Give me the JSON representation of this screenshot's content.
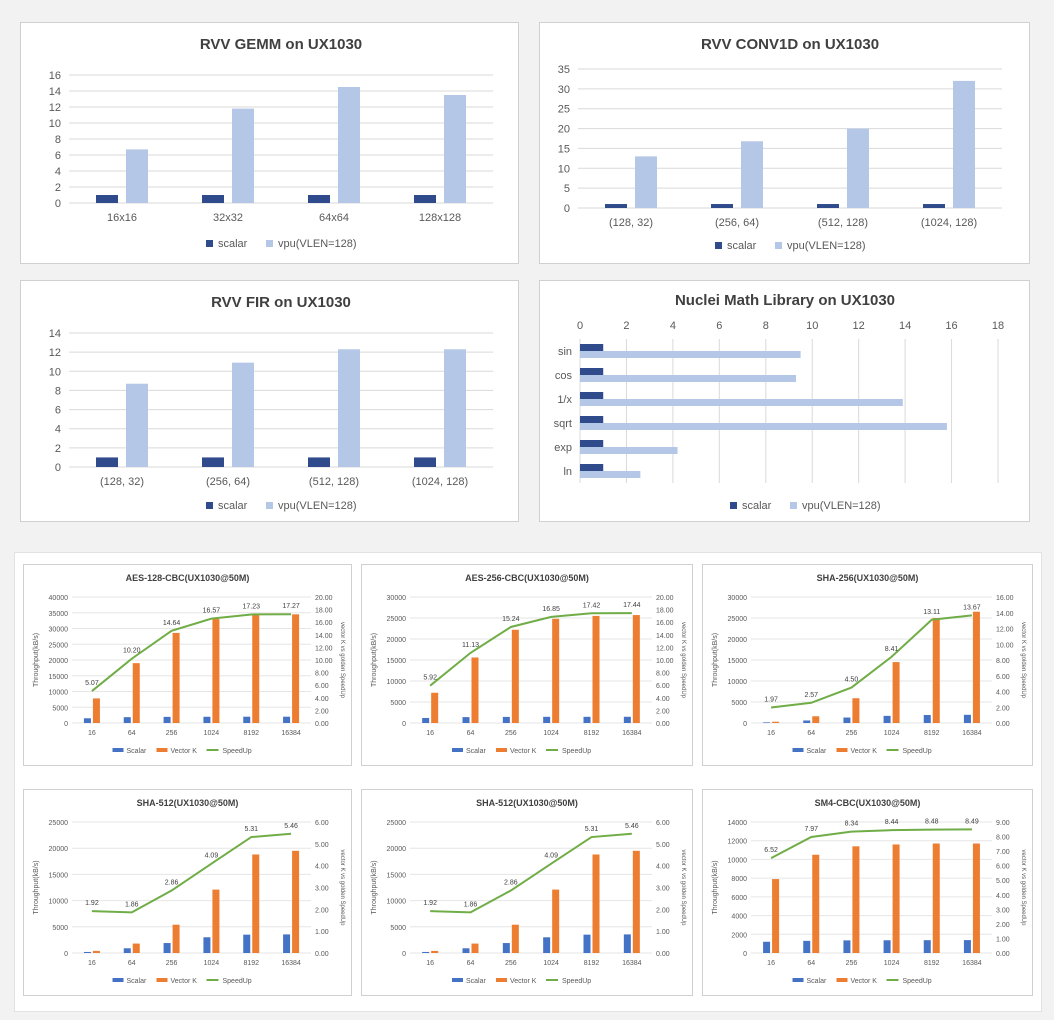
{
  "colors": {
    "scalar_top": "#2f4b8c",
    "vpu_top": "#b4c7e7",
    "scalar_bottom": "#4472c4",
    "vector_bottom": "#ed7d31",
    "speedup_bottom": "#70ad47"
  },
  "chart_data": [
    {
      "type": "bar",
      "title": "RVV GEMM on UX1030",
      "categories": [
        "16x16",
        "32x32",
        "64x64",
        "128x128"
      ],
      "series": [
        {
          "name": "scalar",
          "values": [
            1,
            1,
            1,
            1
          ]
        },
        {
          "name": "vpu(VLEN=128)",
          "values": [
            6.7,
            11.8,
            14.5,
            13.5
          ]
        }
      ],
      "ylim": [
        0,
        16
      ],
      "yticks": [
        0,
        2,
        4,
        6,
        8,
        10,
        12,
        14,
        16
      ],
      "legend": "bottom",
      "grid": true
    },
    {
      "type": "bar",
      "title": "RVV CONV1D on UX1030",
      "categories": [
        "(128, 32)",
        "(256, 64)",
        "(512, 128)",
        "(1024, 128)"
      ],
      "series": [
        {
          "name": "scalar",
          "values": [
            1,
            1,
            1,
            1
          ]
        },
        {
          "name": "vpu(VLEN=128)",
          "values": [
            13,
            16.8,
            20,
            32
          ]
        }
      ],
      "ylim": [
        0,
        35
      ],
      "yticks": [
        0,
        5,
        10,
        15,
        20,
        25,
        30,
        35
      ],
      "legend": "bottom",
      "grid": true
    },
    {
      "type": "bar",
      "title": "RVV FIR on UX1030",
      "categories": [
        "(128, 32)",
        "(256, 64)",
        "(512, 128)",
        "(1024, 128)"
      ],
      "series": [
        {
          "name": "scalar",
          "values": [
            1,
            1,
            1,
            1
          ]
        },
        {
          "name": "vpu(VLEN=128)",
          "values": [
            8.7,
            10.9,
            12.3,
            12.3
          ]
        }
      ],
      "ylim": [
        0,
        14
      ],
      "yticks": [
        0,
        2,
        4,
        6,
        8,
        10,
        12,
        14
      ],
      "legend": "bottom",
      "grid": true
    },
    {
      "type": "bar",
      "orientation": "horizontal",
      "title": "Nuclei Math Library on UX1030",
      "categories": [
        "sin",
        "cos",
        "1/x",
        "sqrt",
        "exp",
        "ln"
      ],
      "series": [
        {
          "name": "scalar",
          "values": [
            1,
            1,
            1,
            1,
            1,
            1
          ]
        },
        {
          "name": "vpu(VLEN=128)",
          "values": [
            9.5,
            9.3,
            13.9,
            15.8,
            4.2,
            2.6
          ]
        }
      ],
      "xlim": [
        0,
        18
      ],
      "xticks": [
        0,
        2,
        4,
        6,
        8,
        10,
        12,
        14,
        16,
        18
      ],
      "legend": "bottom",
      "grid": true
    },
    {
      "type": "bar+line",
      "title": "AES-128-CBC(UX1030@50M)",
      "categories": [
        "16",
        "64",
        "256",
        "1024",
        "8192",
        "16384"
      ],
      "series": [
        {
          "name": "Scalar",
          "values": [
            1500,
            1850,
            1950,
            1980,
            2000,
            2000
          ]
        },
        {
          "name": "Vector K",
          "values": [
            7800,
            19000,
            28600,
            33000,
            34300,
            34500
          ]
        },
        {
          "name": "SpeedUp",
          "axis": "right",
          "values": [
            5.07,
            10.2,
            14.64,
            16.57,
            17.23,
            17.27
          ],
          "labels": [
            "5.07",
            "10.20",
            "14.64",
            "16.57",
            "17.23",
            "17.27"
          ]
        }
      ],
      "ylabel": "Throughput(kB/s)",
      "ylabel_right": "vector K vs golden SpeedUp",
      "ylim": [
        0,
        40000
      ],
      "yticks": [
        "0",
        "5000",
        "10000",
        "15000",
        "20000",
        "25000",
        "30000",
        "35000",
        "40000"
      ],
      "ylim_right": [
        0,
        20
      ],
      "yticks_right": [
        "0.00",
        "2.00",
        "4.00",
        "6.00",
        "8.00",
        "10.00",
        "12.00",
        "14.00",
        "16.00",
        "18.00",
        "20.00"
      ],
      "legend": "bottom"
    },
    {
      "type": "bar+line",
      "title": "AES-256-CBC(UX1030@50M)",
      "categories": [
        "16",
        "64",
        "256",
        "1024",
        "8192",
        "16384"
      ],
      "series": [
        {
          "name": "Scalar",
          "values": [
            1200,
            1400,
            1450,
            1470,
            1470,
            1480
          ]
        },
        {
          "name": "Vector K",
          "values": [
            7200,
            15600,
            22200,
            24800,
            25500,
            25700
          ]
        },
        {
          "name": "SpeedUp",
          "axis": "right",
          "values": [
            5.92,
            11.13,
            15.24,
            16.85,
            17.42,
            17.44
          ],
          "labels": [
            "5.92",
            "11.13",
            "15.24",
            "16.85",
            "17.42",
            "17.44"
          ]
        }
      ],
      "ylabel": "Throughput(kB/s)",
      "ylabel_right": "vector K vs golden SpeedUp",
      "ylim": [
        0,
        30000
      ],
      "yticks": [
        "0",
        "5000",
        "10000",
        "15000",
        "20000",
        "25000",
        "30000"
      ],
      "ylim_right": [
        0,
        20
      ],
      "yticks_right": [
        "0.00",
        "2.00",
        "4.00",
        "6.00",
        "8.00",
        "10.00",
        "12.00",
        "14.00",
        "16.00",
        "18.00",
        "20.00"
      ],
      "legend": "bottom"
    },
    {
      "type": "bar+line",
      "title": "SHA-256(UX1030@50M)",
      "categories": [
        "16",
        "64",
        "256",
        "1024",
        "8192",
        "16384"
      ],
      "series": [
        {
          "name": "Scalar",
          "values": [
            150,
            600,
            1300,
            1700,
            1900,
            1950
          ]
        },
        {
          "name": "Vector K",
          "values": [
            300,
            1600,
            5900,
            14500,
            25000,
            26500
          ]
        },
        {
          "name": "SpeedUp",
          "axis": "right",
          "values": [
            1.97,
            2.57,
            4.5,
            8.41,
            13.11,
            13.67
          ],
          "labels": [
            "1.97",
            "2.57",
            "4.50",
            "8.41",
            "13.11",
            "13.67"
          ]
        }
      ],
      "ylabel": "Throughput(kB/s)",
      "ylabel_right": "vector K vs golden SpeedUp",
      "ylim": [
        0,
        30000
      ],
      "yticks": [
        "0",
        "5000",
        "10000",
        "15000",
        "20000",
        "25000",
        "30000"
      ],
      "ylim_right": [
        0,
        16
      ],
      "yticks_right": [
        "0.00",
        "2.00",
        "4.00",
        "6.00",
        "8.00",
        "10.00",
        "12.00",
        "14.00",
        "16.00"
      ],
      "legend": "bottom"
    },
    {
      "type": "bar+line",
      "title": "SHA-512(UX1030@50M)",
      "categories": [
        "16",
        "64",
        "256",
        "1024",
        "8192",
        "16384"
      ],
      "series": [
        {
          "name": "Scalar",
          "values": [
            200,
            900,
            1900,
            3000,
            3500,
            3550
          ]
        },
        {
          "name": "Vector K",
          "values": [
            400,
            1800,
            5400,
            12100,
            18800,
            19500
          ]
        },
        {
          "name": "SpeedUp",
          "axis": "right",
          "values": [
            1.92,
            1.86,
            2.86,
            4.09,
            5.31,
            5.46
          ],
          "labels": [
            "1.92",
            "1.86",
            "2.86",
            "4.09",
            "5.31",
            "5.46"
          ]
        }
      ],
      "ylabel": "Throughput(kB/s)",
      "ylabel_right": "vector K vs golden SpeedUp",
      "ylim": [
        0,
        25000
      ],
      "yticks": [
        "0",
        "5000",
        "10000",
        "15000",
        "20000",
        "25000"
      ],
      "ylim_right": [
        0,
        6
      ],
      "yticks_right": [
        "0.00",
        "1.00",
        "2.00",
        "3.00",
        "4.00",
        "5.00",
        "6.00"
      ],
      "legend": "bottom"
    },
    {
      "type": "bar+line",
      "title": "SHA-512(UX1030@50M)",
      "categories": [
        "16",
        "64",
        "256",
        "1024",
        "8192",
        "16384"
      ],
      "series": [
        {
          "name": "Scalar",
          "values": [
            200,
            900,
            1900,
            3000,
            3500,
            3550
          ]
        },
        {
          "name": "Vector K",
          "values": [
            400,
            1800,
            5400,
            12100,
            18800,
            19500
          ]
        },
        {
          "name": "SpeedUp",
          "axis": "right",
          "values": [
            1.92,
            1.86,
            2.86,
            4.09,
            5.31,
            5.46
          ],
          "labels": [
            "1.92",
            "1.86",
            "2.86",
            "4.09",
            "5.31",
            "5.46"
          ]
        }
      ],
      "ylabel": "Throughput(kB/s)",
      "ylabel_right": "vector K vs golden SpeedUp",
      "ylim": [
        0,
        25000
      ],
      "yticks": [
        "0",
        "5000",
        "10000",
        "15000",
        "20000",
        "25000"
      ],
      "ylim_right": [
        0,
        6
      ],
      "yticks_right": [
        "0.00",
        "1.00",
        "2.00",
        "3.00",
        "4.00",
        "5.00",
        "6.00"
      ],
      "legend": "bottom"
    },
    {
      "type": "bar+line",
      "title": "SM4-CBC(UX1030@50M)",
      "categories": [
        "16",
        "64",
        "256",
        "1024",
        "8192",
        "16384"
      ],
      "series": [
        {
          "name": "Scalar",
          "values": [
            1200,
            1300,
            1350,
            1360,
            1370,
            1380
          ]
        },
        {
          "name": "Vector K",
          "values": [
            7900,
            10500,
            11400,
            11600,
            11700,
            11700
          ]
        },
        {
          "name": "SpeedUp",
          "axis": "right",
          "values": [
            6.52,
            7.97,
            8.34,
            8.44,
            8.48,
            8.49
          ],
          "labels": [
            "6.52",
            "7.97",
            "8.34",
            "8.44",
            "8.48",
            "8.49"
          ]
        }
      ],
      "ylabel": "Throughput(kB/s)",
      "ylabel_right": "vector K vs golden SpeedUp",
      "ylim": [
        0,
        14000
      ],
      "yticks": [
        "0",
        "2000",
        "4000",
        "6000",
        "8000",
        "10000",
        "12000",
        "14000"
      ],
      "ylim_right": [
        0,
        9
      ],
      "yticks_right": [
        "0.00",
        "1.00",
        "2.00",
        "3.00",
        "4.00",
        "5.00",
        "6.00",
        "7.00",
        "8.00",
        "9.00"
      ],
      "legend": "bottom"
    }
  ]
}
